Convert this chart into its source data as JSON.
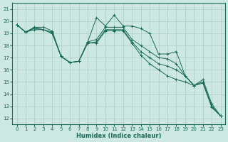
{
  "xlabel": "Humidex (Indice chaleur)",
  "bg_color": "#cce8e0",
  "grid_color": "#aacec6",
  "line_color": "#1a6b5a",
  "xlim": [
    -0.5,
    23.5
  ],
  "ylim": [
    11.5,
    21.5
  ],
  "yticks": [
    12,
    13,
    14,
    15,
    16,
    17,
    18,
    19,
    20,
    21
  ],
  "xticks": [
    0,
    1,
    2,
    3,
    4,
    5,
    6,
    7,
    8,
    9,
    10,
    11,
    12,
    13,
    14,
    15,
    16,
    17,
    18,
    19,
    20,
    21,
    22,
    23
  ],
  "series": [
    [
      19.7,
      19.1,
      19.5,
      19.5,
      19.2,
      17.1,
      16.6,
      16.7,
      18.3,
      20.3,
      19.6,
      20.5,
      19.6,
      19.6,
      19.4,
      19.0,
      17.3,
      17.3,
      17.5,
      15.5,
      14.7,
      15.2,
      13.2,
      12.2
    ],
    [
      19.7,
      19.1,
      19.5,
      19.3,
      19.1,
      17.1,
      16.6,
      16.7,
      18.3,
      18.5,
      19.5,
      19.5,
      19.5,
      18.5,
      18.0,
      17.5,
      17.0,
      16.9,
      16.5,
      15.5,
      14.7,
      15.0,
      13.0,
      12.2
    ],
    [
      19.7,
      19.1,
      19.4,
      19.3,
      19.0,
      17.1,
      16.6,
      16.7,
      18.2,
      18.3,
      19.3,
      19.3,
      19.3,
      18.3,
      17.5,
      17.0,
      16.5,
      16.3,
      16.0,
      15.5,
      14.7,
      15.0,
      13.0,
      12.2
    ],
    [
      19.7,
      19.1,
      19.3,
      19.3,
      19.0,
      17.1,
      16.6,
      16.7,
      18.2,
      18.2,
      19.2,
      19.2,
      19.2,
      18.2,
      17.2,
      16.5,
      16.0,
      15.5,
      15.2,
      15.0,
      14.7,
      14.9,
      12.9,
      12.2
    ]
  ]
}
